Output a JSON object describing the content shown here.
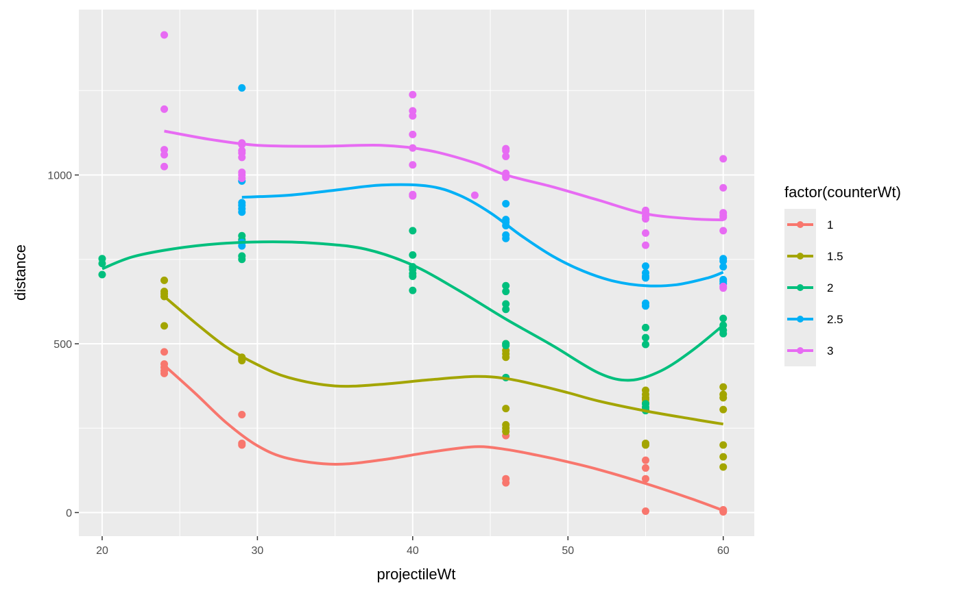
{
  "chart_data": {
    "type": "scatter",
    "xlabel": "projectileWt",
    "ylabel": "distance",
    "xlim": [
      18.5,
      62
    ],
    "ylim": [
      -70,
      1490
    ],
    "x_ticks": [
      20,
      30,
      40,
      50,
      60
    ],
    "x_tick_labels": [
      "20",
      "30",
      "40",
      "50",
      "60"
    ],
    "y_ticks": [
      0,
      500,
      1000
    ],
    "y_tick_labels": [
      "0",
      "500",
      "1000"
    ],
    "grid": true,
    "legend": {
      "title": "factor(counterWt)",
      "position": "right"
    },
    "series": [
      {
        "name": "1",
        "color": "#F8766D",
        "points": [
          [
            24,
            476
          ],
          [
            24,
            440
          ],
          [
            24,
            430
          ],
          [
            24,
            420
          ],
          [
            24,
            412
          ],
          [
            29,
            290
          ],
          [
            29,
            205
          ],
          [
            29,
            200
          ],
          [
            46,
            228
          ],
          [
            46,
            100
          ],
          [
            46,
            88
          ],
          [
            55,
            155
          ],
          [
            55,
            132
          ],
          [
            55,
            100
          ],
          [
            55,
            4
          ],
          [
            60,
            8
          ],
          [
            60,
            4
          ],
          [
            60,
            2
          ]
        ],
        "smooth": [
          [
            24,
            436
          ],
          [
            26,
            353
          ],
          [
            28,
            266
          ],
          [
            30,
            198
          ],
          [
            32,
            160
          ],
          [
            35,
            143
          ],
          [
            38,
            156
          ],
          [
            41,
            178
          ],
          [
            44,
            195
          ],
          [
            46,
            187
          ],
          [
            48,
            170
          ],
          [
            50,
            150
          ],
          [
            52,
            127
          ],
          [
            55,
            86
          ],
          [
            58,
            40
          ],
          [
            60,
            6
          ]
        ]
      },
      {
        "name": "1.5",
        "color": "#A3A500",
        "points": [
          [
            24,
            688
          ],
          [
            24,
            655
          ],
          [
            24,
            648
          ],
          [
            24,
            640
          ],
          [
            24,
            553
          ],
          [
            29,
            460
          ],
          [
            29,
            455
          ],
          [
            29,
            450
          ],
          [
            46,
            500
          ],
          [
            46,
            480
          ],
          [
            46,
            470
          ],
          [
            46,
            460
          ],
          [
            46,
            308
          ],
          [
            46,
            260
          ],
          [
            46,
            250
          ],
          [
            46,
            240
          ],
          [
            55,
            362
          ],
          [
            55,
            350
          ],
          [
            55,
            340
          ],
          [
            55,
            335
          ],
          [
            55,
            325
          ],
          [
            55,
            305
          ],
          [
            55,
            205
          ],
          [
            55,
            200
          ],
          [
            60,
            372
          ],
          [
            60,
            350
          ],
          [
            60,
            340
          ],
          [
            60,
            305
          ],
          [
            60,
            200
          ],
          [
            60,
            165
          ],
          [
            60,
            135
          ]
        ],
        "smooth": [
          [
            24,
            640
          ],
          [
            26,
            562
          ],
          [
            28,
            490
          ],
          [
            30,
            438
          ],
          [
            32,
            400
          ],
          [
            35,
            375
          ],
          [
            38,
            380
          ],
          [
            41,
            393
          ],
          [
            44,
            403
          ],
          [
            46,
            397
          ],
          [
            48,
            378
          ],
          [
            50,
            355
          ],
          [
            52,
            330
          ],
          [
            55,
            301
          ],
          [
            58,
            277
          ],
          [
            60,
            262
          ]
        ]
      },
      {
        "name": "2",
        "color": "#00BF7D",
        "points": [
          [
            20,
            752
          ],
          [
            20,
            738
          ],
          [
            20,
            705
          ],
          [
            29,
            820
          ],
          [
            29,
            808
          ],
          [
            29,
            760
          ],
          [
            29,
            750
          ],
          [
            40,
            835
          ],
          [
            40,
            763
          ],
          [
            40,
            728
          ],
          [
            40,
            720
          ],
          [
            40,
            708
          ],
          [
            40,
            700
          ],
          [
            40,
            658
          ],
          [
            46,
            672
          ],
          [
            46,
            655
          ],
          [
            46,
            618
          ],
          [
            46,
            602
          ],
          [
            46,
            500
          ],
          [
            46,
            495
          ],
          [
            46,
            400
          ],
          [
            55,
            548
          ],
          [
            55,
            518
          ],
          [
            55,
            498
          ],
          [
            55,
            322
          ],
          [
            55,
            312
          ],
          [
            55,
            302
          ],
          [
            60,
            575
          ],
          [
            60,
            555
          ],
          [
            60,
            540
          ],
          [
            60,
            530
          ]
        ],
        "smooth": [
          [
            20,
            722
          ],
          [
            22,
            758
          ],
          [
            25,
            784
          ],
          [
            28,
            798
          ],
          [
            31,
            802
          ],
          [
            34,
            797
          ],
          [
            37,
            780
          ],
          [
            40,
            733
          ],
          [
            43,
            657
          ],
          [
            46,
            573
          ],
          [
            49,
            495
          ],
          [
            52,
            413
          ],
          [
            54,
            392
          ],
          [
            56,
            420
          ],
          [
            58,
            480
          ],
          [
            60,
            555
          ]
        ]
      },
      {
        "name": "2.5",
        "color": "#00B0F6",
        "points": [
          [
            29,
            1258
          ],
          [
            29,
            982
          ],
          [
            29,
            918
          ],
          [
            29,
            910
          ],
          [
            29,
            900
          ],
          [
            29,
            890
          ],
          [
            29,
            800
          ],
          [
            29,
            790
          ],
          [
            46,
            915
          ],
          [
            46,
            868
          ],
          [
            46,
            860
          ],
          [
            46,
            850
          ],
          [
            46,
            822
          ],
          [
            46,
            812
          ],
          [
            55,
            730
          ],
          [
            55,
            710
          ],
          [
            55,
            700
          ],
          [
            55,
            695
          ],
          [
            55,
            620
          ],
          [
            55,
            612
          ],
          [
            60,
            752
          ],
          [
            60,
            745
          ],
          [
            60,
            728
          ],
          [
            60,
            690
          ],
          [
            60,
            685
          ],
          [
            60,
            678
          ]
        ],
        "smooth": [
          [
            29,
            934
          ],
          [
            32,
            940
          ],
          [
            35,
            955
          ],
          [
            38,
            970
          ],
          [
            41,
            967
          ],
          [
            43,
            940
          ],
          [
            45,
            888
          ],
          [
            47,
            820
          ],
          [
            49,
            760
          ],
          [
            51,
            715
          ],
          [
            53,
            685
          ],
          [
            55,
            672
          ],
          [
            57,
            675
          ],
          [
            59,
            695
          ],
          [
            60,
            712
          ]
        ]
      },
      {
        "name": "3",
        "color": "#E76BF3",
        "points": [
          [
            24,
            1415
          ],
          [
            24,
            1195
          ],
          [
            24,
            1075
          ],
          [
            24,
            1060
          ],
          [
            24,
            1025
          ],
          [
            29,
            1095
          ],
          [
            29,
            1090
          ],
          [
            29,
            1072
          ],
          [
            29,
            1065
          ],
          [
            29,
            1052
          ],
          [
            29,
            1008
          ],
          [
            29,
            1000
          ],
          [
            29,
            990
          ],
          [
            40,
            1238
          ],
          [
            40,
            1190
          ],
          [
            40,
            1175
          ],
          [
            40,
            1120
          ],
          [
            40,
            1080
          ],
          [
            40,
            1030
          ],
          [
            40,
            942
          ],
          [
            40,
            938
          ],
          [
            44,
            940
          ],
          [
            46,
            1078
          ],
          [
            46,
            1072
          ],
          [
            46,
            1055
          ],
          [
            46,
            1005
          ],
          [
            46,
            998
          ],
          [
            46,
            993
          ],
          [
            55,
            895
          ],
          [
            55,
            888
          ],
          [
            55,
            878
          ],
          [
            55,
            870
          ],
          [
            55,
            828
          ],
          [
            55,
            792
          ],
          [
            60,
            1048
          ],
          [
            60,
            962
          ],
          [
            60,
            888
          ],
          [
            60,
            880
          ],
          [
            60,
            875
          ],
          [
            60,
            835
          ],
          [
            60,
            670
          ],
          [
            60,
            665
          ]
        ],
        "smooth": [
          [
            24,
            1130
          ],
          [
            27,
            1105
          ],
          [
            30,
            1088
          ],
          [
            34,
            1085
          ],
          [
            38,
            1088
          ],
          [
            41,
            1073
          ],
          [
            44,
            1036
          ],
          [
            46,
            1000
          ],
          [
            49,
            965
          ],
          [
            52,
            925
          ],
          [
            55,
            885
          ],
          [
            58,
            870
          ],
          [
            60,
            867
          ]
        ]
      }
    ]
  }
}
